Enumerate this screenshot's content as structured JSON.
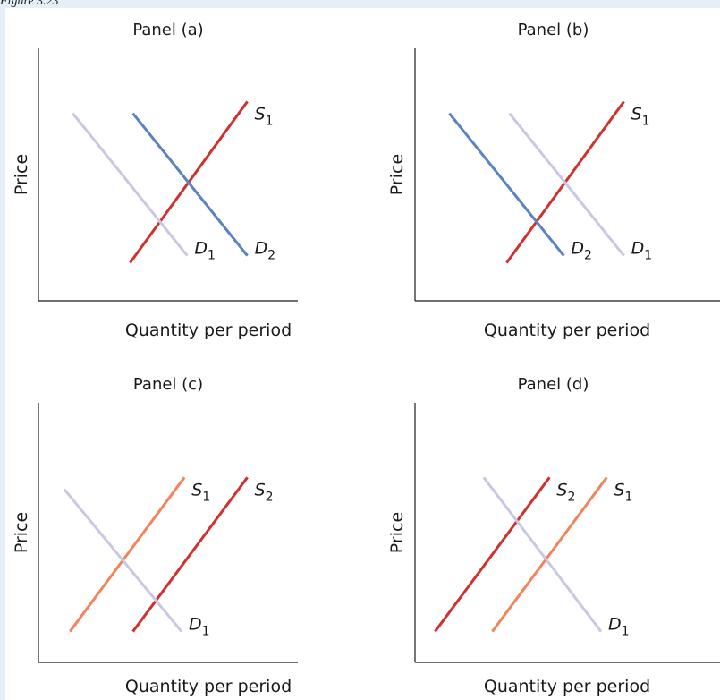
{
  "caption": "Figure 3.23",
  "chart_data": [
    {
      "type": "line",
      "title": "Panel (a)",
      "xlabel": "Quantity per period",
      "ylabel": "Price",
      "series": [
        {
          "name": "S",
          "sub": "1",
          "color": "#d0312d",
          "points": [
            [
              3.2,
              1.6
            ],
            [
              7.3,
              8.4
            ]
          ]
        },
        {
          "name": "D",
          "sub": "1",
          "color": "#c9c8e2",
          "points": [
            [
              1.2,
              7.9
            ],
            [
              5.2,
              1.9
            ]
          ]
        },
        {
          "name": "D",
          "sub": "2",
          "color": "#5b83c2",
          "points": [
            [
              3.3,
              7.9
            ],
            [
              7.3,
              1.9
            ]
          ]
        }
      ]
    },
    {
      "type": "line",
      "title": "Panel (b)",
      "xlabel": "Quantity per period",
      "ylabel": "Price",
      "series": [
        {
          "name": "S",
          "sub": "1",
          "color": "#d0312d",
          "points": [
            [
              3.2,
              1.6
            ],
            [
              7.3,
              8.4
            ]
          ]
        },
        {
          "name": "D",
          "sub": "2",
          "color": "#5b83c2",
          "points": [
            [
              1.2,
              7.9
            ],
            [
              5.2,
              1.9
            ]
          ]
        },
        {
          "name": "D",
          "sub": "1",
          "color": "#c9c8e2",
          "points": [
            [
              3.3,
              7.9
            ],
            [
              7.3,
              1.9
            ]
          ]
        }
      ]
    },
    {
      "type": "line",
      "title": "Panel (c)",
      "xlabel": "Quantity per period",
      "ylabel": "Price",
      "series": [
        {
          "name": "S",
          "sub": "1",
          "color": "#f2845b",
          "points": [
            [
              1.1,
              1.3
            ],
            [
              5.1,
              7.8
            ]
          ]
        },
        {
          "name": "S",
          "sub": "2",
          "color": "#d0312d",
          "points": [
            [
              3.3,
              1.3
            ],
            [
              7.3,
              7.8
            ]
          ]
        },
        {
          "name": "D",
          "sub": "1",
          "color": "#c9c8e2",
          "points": [
            [
              0.9,
              7.3
            ],
            [
              5.0,
              1.3
            ]
          ]
        }
      ]
    },
    {
      "type": "line",
      "title": "Panel (d)",
      "xlabel": "Quantity per period",
      "ylabel": "Price",
      "series": [
        {
          "name": "S",
          "sub": "2",
          "color": "#d0312d",
          "points": [
            [
              0.7,
              1.3
            ],
            [
              4.7,
              7.8
            ]
          ]
        },
        {
          "name": "S",
          "sub": "1",
          "color": "#f2845b",
          "points": [
            [
              2.7,
              1.3
            ],
            [
              6.7,
              7.8
            ]
          ]
        },
        {
          "name": "D",
          "sub": "1",
          "color": "#c9c8e2",
          "points": [
            [
              2.4,
              7.8
            ],
            [
              6.5,
              1.3
            ]
          ]
        }
      ]
    }
  ]
}
